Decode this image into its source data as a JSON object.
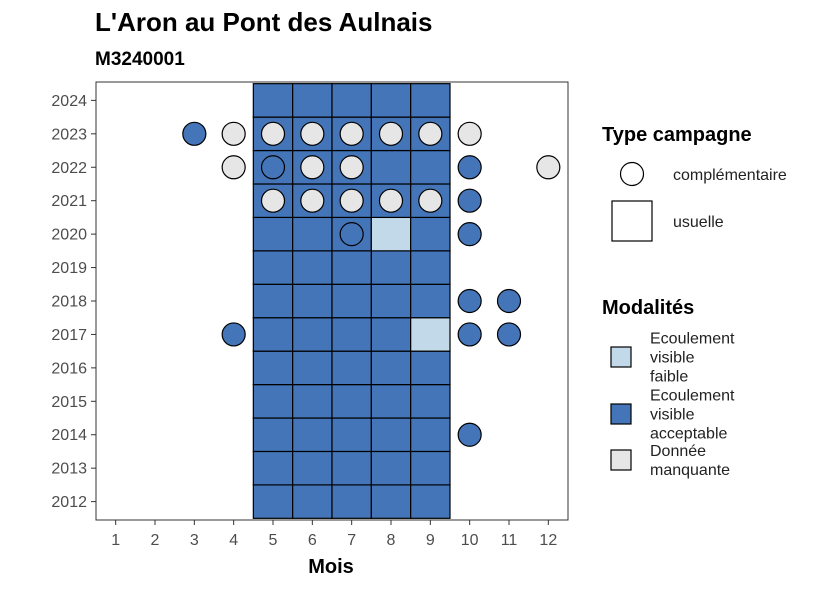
{
  "chart_data": {
    "type": "heatmap",
    "title": "L'Aron au Pont des Aulnais",
    "subtitle": "M3240001",
    "xlabel": "Mois",
    "ylabel": "",
    "x_ticks": [
      1,
      2,
      3,
      4,
      5,
      6,
      7,
      8,
      9,
      10,
      11,
      12
    ],
    "y_ticks": [
      2012,
      2013,
      2014,
      2015,
      2016,
      2017,
      2018,
      2019,
      2020,
      2021,
      2022,
      2023,
      2024
    ],
    "xlim": [
      0.5,
      12.5
    ],
    "ylim": [
      2011.45,
      2024.55
    ],
    "grid": false,
    "colors": {
      "faible": "#c2d9ea",
      "acceptable": "#4475b9",
      "manquante": "#e6e6e6"
    },
    "usuelle": [
      {
        "month": 5,
        "year": 2012,
        "modalite": "acceptable"
      },
      {
        "month": 6,
        "year": 2012,
        "modalite": "acceptable"
      },
      {
        "month": 7,
        "year": 2012,
        "modalite": "acceptable"
      },
      {
        "month": 8,
        "year": 2012,
        "modalite": "acceptable"
      },
      {
        "month": 9,
        "year": 2012,
        "modalite": "acceptable"
      },
      {
        "month": 5,
        "year": 2013,
        "modalite": "acceptable"
      },
      {
        "month": 6,
        "year": 2013,
        "modalite": "acceptable"
      },
      {
        "month": 7,
        "year": 2013,
        "modalite": "acceptable"
      },
      {
        "month": 8,
        "year": 2013,
        "modalite": "acceptable"
      },
      {
        "month": 9,
        "year": 2013,
        "modalite": "acceptable"
      },
      {
        "month": 5,
        "year": 2014,
        "modalite": "acceptable"
      },
      {
        "month": 6,
        "year": 2014,
        "modalite": "acceptable"
      },
      {
        "month": 7,
        "year": 2014,
        "modalite": "acceptable"
      },
      {
        "month": 8,
        "year": 2014,
        "modalite": "acceptable"
      },
      {
        "month": 9,
        "year": 2014,
        "modalite": "acceptable"
      },
      {
        "month": 5,
        "year": 2015,
        "modalite": "acceptable"
      },
      {
        "month": 6,
        "year": 2015,
        "modalite": "acceptable"
      },
      {
        "month": 7,
        "year": 2015,
        "modalite": "acceptable"
      },
      {
        "month": 8,
        "year": 2015,
        "modalite": "acceptable"
      },
      {
        "month": 9,
        "year": 2015,
        "modalite": "acceptable"
      },
      {
        "month": 5,
        "year": 2016,
        "modalite": "acceptable"
      },
      {
        "month": 6,
        "year": 2016,
        "modalite": "acceptable"
      },
      {
        "month": 7,
        "year": 2016,
        "modalite": "acceptable"
      },
      {
        "month": 8,
        "year": 2016,
        "modalite": "acceptable"
      },
      {
        "month": 9,
        "year": 2016,
        "modalite": "acceptable"
      },
      {
        "month": 5,
        "year": 2017,
        "modalite": "acceptable"
      },
      {
        "month": 6,
        "year": 2017,
        "modalite": "acceptable"
      },
      {
        "month": 7,
        "year": 2017,
        "modalite": "acceptable"
      },
      {
        "month": 8,
        "year": 2017,
        "modalite": "acceptable"
      },
      {
        "month": 9,
        "year": 2017,
        "modalite": "faible"
      },
      {
        "month": 5,
        "year": 2018,
        "modalite": "acceptable"
      },
      {
        "month": 6,
        "year": 2018,
        "modalite": "acceptable"
      },
      {
        "month": 7,
        "year": 2018,
        "modalite": "acceptable"
      },
      {
        "month": 8,
        "year": 2018,
        "modalite": "acceptable"
      },
      {
        "month": 9,
        "year": 2018,
        "modalite": "acceptable"
      },
      {
        "month": 5,
        "year": 2019,
        "modalite": "acceptable"
      },
      {
        "month": 6,
        "year": 2019,
        "modalite": "acceptable"
      },
      {
        "month": 7,
        "year": 2019,
        "modalite": "acceptable"
      },
      {
        "month": 8,
        "year": 2019,
        "modalite": "acceptable"
      },
      {
        "month": 9,
        "year": 2019,
        "modalite": "acceptable"
      },
      {
        "month": 5,
        "year": 2020,
        "modalite": "acceptable"
      },
      {
        "month": 6,
        "year": 2020,
        "modalite": "acceptable"
      },
      {
        "month": 7,
        "year": 2020,
        "modalite": "acceptable"
      },
      {
        "month": 8,
        "year": 2020,
        "modalite": "faible"
      },
      {
        "month": 9,
        "year": 2020,
        "modalite": "acceptable"
      },
      {
        "month": 5,
        "year": 2021,
        "modalite": "acceptable"
      },
      {
        "month": 6,
        "year": 2021,
        "modalite": "acceptable"
      },
      {
        "month": 7,
        "year": 2021,
        "modalite": "acceptable"
      },
      {
        "month": 8,
        "year": 2021,
        "modalite": "acceptable"
      },
      {
        "month": 9,
        "year": 2021,
        "modalite": "acceptable"
      },
      {
        "month": 5,
        "year": 2022,
        "modalite": "acceptable"
      },
      {
        "month": 6,
        "year": 2022,
        "modalite": "acceptable"
      },
      {
        "month": 7,
        "year": 2022,
        "modalite": "acceptable"
      },
      {
        "month": 8,
        "year": 2022,
        "modalite": "acceptable"
      },
      {
        "month": 9,
        "year": 2022,
        "modalite": "acceptable"
      },
      {
        "month": 5,
        "year": 2023,
        "modalite": "acceptable"
      },
      {
        "month": 6,
        "year": 2023,
        "modalite": "acceptable"
      },
      {
        "month": 7,
        "year": 2023,
        "modalite": "acceptable"
      },
      {
        "month": 8,
        "year": 2023,
        "modalite": "acceptable"
      },
      {
        "month": 9,
        "year": 2023,
        "modalite": "acceptable"
      },
      {
        "month": 5,
        "year": 2024,
        "modalite": "acceptable"
      },
      {
        "month": 6,
        "year": 2024,
        "modalite": "acceptable"
      },
      {
        "month": 7,
        "year": 2024,
        "modalite": "acceptable"
      },
      {
        "month": 8,
        "year": 2024,
        "modalite": "acceptable"
      },
      {
        "month": 9,
        "year": 2024,
        "modalite": "acceptable"
      }
    ],
    "complementaire": [
      {
        "month": 3,
        "year": 2023,
        "modalite": "acceptable"
      },
      {
        "month": 4,
        "year": 2023,
        "modalite": "manquante"
      },
      {
        "month": 5,
        "year": 2023,
        "modalite": "manquante"
      },
      {
        "month": 6,
        "year": 2023,
        "modalite": "manquante"
      },
      {
        "month": 7,
        "year": 2023,
        "modalite": "manquante"
      },
      {
        "month": 8,
        "year": 2023,
        "modalite": "manquante"
      },
      {
        "month": 9,
        "year": 2023,
        "modalite": "manquante"
      },
      {
        "month": 10,
        "year": 2023,
        "modalite": "manquante"
      },
      {
        "month": 4,
        "year": 2022,
        "modalite": "manquante"
      },
      {
        "month": 5,
        "year": 2022,
        "modalite": "acceptable"
      },
      {
        "month": 6,
        "year": 2022,
        "modalite": "manquante"
      },
      {
        "month": 7,
        "year": 2022,
        "modalite": "manquante"
      },
      {
        "month": 10,
        "year": 2022,
        "modalite": "acceptable"
      },
      {
        "month": 12,
        "year": 2022,
        "modalite": "manquante"
      },
      {
        "month": 5,
        "year": 2021,
        "modalite": "manquante"
      },
      {
        "month": 6,
        "year": 2021,
        "modalite": "manquante"
      },
      {
        "month": 7,
        "year": 2021,
        "modalite": "manquante"
      },
      {
        "month": 8,
        "year": 2021,
        "modalite": "manquante"
      },
      {
        "month": 9,
        "year": 2021,
        "modalite": "manquante"
      },
      {
        "month": 10,
        "year": 2021,
        "modalite": "acceptable"
      },
      {
        "month": 7,
        "year": 2020,
        "modalite": "acceptable"
      },
      {
        "month": 10,
        "year": 2020,
        "modalite": "acceptable"
      },
      {
        "month": 10,
        "year": 2018,
        "modalite": "acceptable"
      },
      {
        "month": 11,
        "year": 2018,
        "modalite": "acceptable"
      },
      {
        "month": 4,
        "year": 2017,
        "modalite": "acceptable"
      },
      {
        "month": 10,
        "year": 2017,
        "modalite": "acceptable"
      },
      {
        "month": 11,
        "year": 2017,
        "modalite": "acceptable"
      },
      {
        "month": 10,
        "year": 2014,
        "modalite": "acceptable"
      }
    ],
    "legend": {
      "placement": "right",
      "shape_title": "Type campagne",
      "shape_items": [
        {
          "shape": "circle",
          "label": "complémentaire"
        },
        {
          "shape": "square",
          "label": "usuelle"
        }
      ],
      "fill_title": "Modalités",
      "fill_items": [
        {
          "key": "faible",
          "lines": [
            "Ecoulement",
            "visible",
            "faible"
          ]
        },
        {
          "key": "acceptable",
          "lines": [
            "Ecoulement",
            "visible",
            "acceptable"
          ]
        },
        {
          "key": "manquante",
          "lines": [
            "Donnée",
            "manquante"
          ]
        }
      ]
    }
  }
}
